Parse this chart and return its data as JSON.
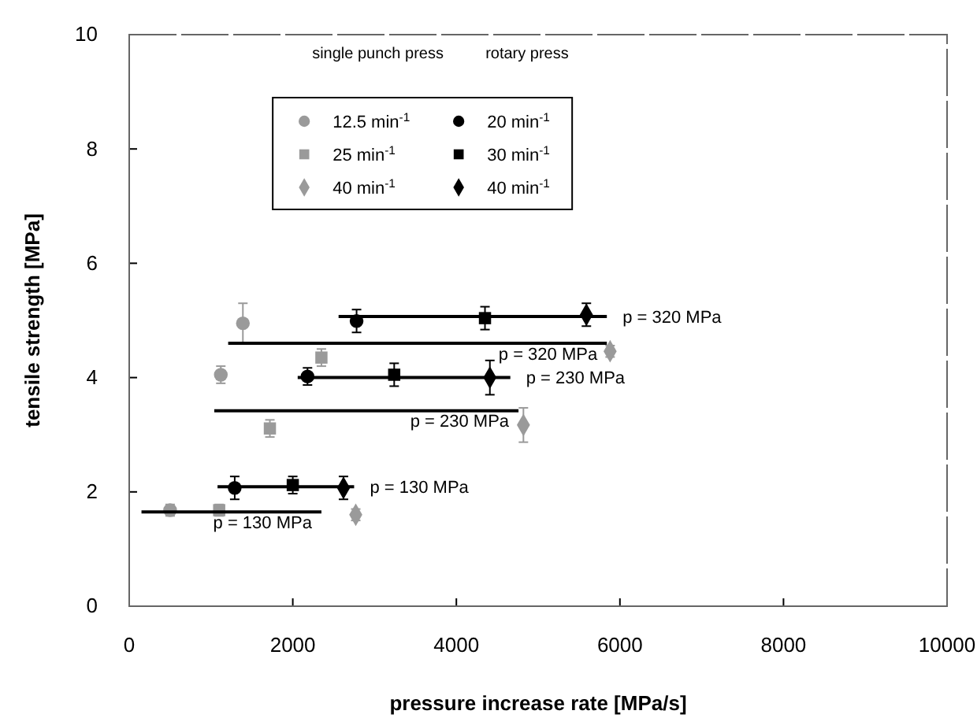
{
  "chart_data": {
    "type": "scatter",
    "xlabel": "pressure increase rate [MPa/s]",
    "ylabel": "tensile strength [MPa]",
    "xlim": [
      0,
      10000
    ],
    "xticks": [
      0,
      2000,
      4000,
      6000,
      8000,
      10000
    ],
    "ylim": [
      0,
      10
    ],
    "yticks": [
      0,
      2,
      4,
      6,
      8,
      10
    ],
    "grid": false,
    "legend": "top",
    "tick_labels": "xy",
    "series": [
      {
        "name": "12.5 min$^{-1}$",
        "marker": "circle",
        "color": "#9a9a9a",
        "x": [
          500,
          1120,
          1390
        ],
        "values": [
          1.68,
          4.05,
          4.95
        ],
        "errors": [
          0.1,
          0.15,
          0.35
        ]
      },
      {
        "name": "25 min$^{-1}$",
        "marker": "square",
        "color": "#9a9a9a",
        "x": [
          1100,
          1720,
          2350
        ],
        "values": [
          1.68,
          3.11,
          4.35
        ],
        "errors": [
          0.1,
          0.15,
          0.15
        ]
      },
      {
        "name": "40 min$^{-1}$",
        "marker": "diamond",
        "color": "#9a9a9a",
        "x": [
          2770,
          4820,
          5880
        ],
        "values": [
          1.6,
          3.17,
          4.46
        ],
        "errors": [
          0.1,
          0.3,
          0.1
        ]
      },
      {
        "name": "20 min$^{-1}$",
        "marker": "circle",
        "color": "#000000",
        "x": [
          1290,
          2180,
          2780
        ],
        "values": [
          2.07,
          4.02,
          4.99
        ],
        "errors": [
          0.2,
          0.15,
          0.2
        ]
      },
      {
        "name": "30 min$^{-1}$",
        "marker": "square",
        "color": "#000000",
        "x": [
          2000,
          3240,
          4350
        ],
        "values": [
          2.12,
          4.05,
          5.04
        ],
        "errors": [
          0.15,
          0.2,
          0.2
        ]
      },
      {
        "name": "40 min$^{-1}$",
        "marker": "diamond",
        "color": "#000000",
        "x": [
          2620,
          4410,
          5590
        ],
        "values": [
          2.07,
          4.0,
          5.1
        ],
        "errors": [
          0.2,
          0.3,
          0.2
        ]
      },
      {
        "name": "p = 130 MPa",
        "type": "line",
        "marker": "none",
        "color": "#000000",
        "x": [
          150,
          2350
        ],
        "values": [
          1.65,
          1.65
        ]
      },
      {
        "name": "p = 230 MPa",
        "type": "line",
        "marker": "none",
        "color": "#000000",
        "x": [
          1040,
          4760
        ],
        "values": [
          3.42,
          3.42
        ]
      },
      {
        "name": "p = 320 MPa",
        "type": "line",
        "marker": "none",
        "color": "#000000",
        "x": [
          1210,
          5840
        ],
        "values": [
          4.6,
          4.6
        ]
      },
      {
        "name": "p = 130 MPa",
        "type": "line",
        "marker": "none",
        "color": "#000000",
        "x": [
          1080,
          2750
        ],
        "values": [
          2.09,
          2.09
        ]
      },
      {
        "name": "p = 230 MPa",
        "type": "line",
        "marker": "none",
        "color": "#000000",
        "x": [
          2060,
          4660
        ],
        "values": [
          4.0,
          4.0
        ]
      },
      {
        "name": "p = 320 MPa",
        "type": "line",
        "marker": "none",
        "color": "#000000",
        "x": [
          2560,
          5840
        ],
        "values": [
          5.07,
          5.07
        ]
      }
    ],
    "annotations": [
      "single punch press",
      "rotary press"
    ]
  }
}
